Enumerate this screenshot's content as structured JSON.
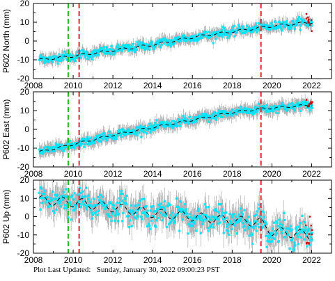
{
  "footer": "Plot Last Updated:   Sunday, January 30, 2022 09:00:23 PST",
  "colors": {
    "data_points": "#00e5ff",
    "error_bars": "#b4b4b4",
    "model_line": "#000000",
    "green_event": "#22bb22",
    "red_event": "#ee2222",
    "outliers": "#cc0000"
  },
  "chart_data": [
    {
      "type": "scatter",
      "id": "north",
      "ylabel": "P602 North (mm)",
      "xlim": [
        2008,
        2023
      ],
      "ylim": [
        -20,
        20
      ],
      "xticks": [
        2008,
        2010,
        2012,
        2014,
        2016,
        2018,
        2020,
        2022
      ],
      "yticks": [
        -20,
        -10,
        0,
        10,
        20
      ],
      "grid": false,
      "vertical_lines": [
        {
          "x": 2009.75,
          "color": "green",
          "style": "dashed"
        },
        {
          "x": 2010.3,
          "color": "red",
          "style": "dashed"
        },
        {
          "x": 2019.45,
          "color": "red",
          "style": "dashed"
        }
      ],
      "trend": {
        "x": [
          2008.3,
          2010,
          2012,
          2014,
          2016,
          2018,
          2020,
          2022
        ],
        "y": [
          -10,
          -8,
          -5,
          -2,
          2,
          5,
          8,
          10
        ]
      },
      "seasonal_amplitude": 0.6,
      "scatter_sd": 1.2,
      "error_bar_half": 3
    },
    {
      "type": "scatter",
      "id": "east",
      "ylabel": "P602 East (mm)",
      "xlim": [
        2008,
        2023
      ],
      "ylim": [
        -20,
        20
      ],
      "xticks": [
        2008,
        2010,
        2012,
        2014,
        2016,
        2018,
        2020,
        2022
      ],
      "yticks": [
        -20,
        -10,
        0,
        10,
        20
      ],
      "grid": false,
      "vertical_lines": [
        {
          "x": 2009.75,
          "color": "green",
          "style": "dashed"
        },
        {
          "x": 2010.3,
          "color": "red",
          "style": "dashed"
        },
        {
          "x": 2019.45,
          "color": "red",
          "style": "dashed"
        }
      ],
      "trend": {
        "x": [
          2008.3,
          2010,
          2012,
          2014,
          2016,
          2018,
          2019.5,
          2022
        ],
        "y": [
          -12,
          -8,
          -3,
          1,
          5,
          9,
          11,
          13
        ]
      },
      "seasonal_amplitude": 0.5,
      "scatter_sd": 1.1,
      "error_bar_half": 3.5
    },
    {
      "type": "scatter",
      "id": "up",
      "ylabel": "P602 Up (mm)",
      "xlim": [
        2008,
        2023
      ],
      "ylim": [
        -20,
        20
      ],
      "xticks": [
        2008,
        2010,
        2012,
        2014,
        2016,
        2018,
        2020,
        2022
      ],
      "yticks": [
        -20,
        -10,
        0,
        10,
        20
      ],
      "grid": false,
      "vertical_lines": [
        {
          "x": 2009.75,
          "color": "green",
          "style": "dashed"
        },
        {
          "x": 2010.3,
          "color": "red",
          "style": "dashed"
        },
        {
          "x": 2019.45,
          "color": "red",
          "style": "dashed"
        }
      ],
      "trend": {
        "x": [
          2008.3,
          2010,
          2012,
          2014,
          2016,
          2018,
          2019.4,
          2020,
          2022
        ],
        "y": [
          9,
          8,
          5,
          2,
          0,
          -2,
          -3,
          -8,
          -10
        ]
      },
      "seasonal_amplitude": 2.5,
      "scatter_sd": 3.5,
      "error_bar_half": 7
    }
  ]
}
